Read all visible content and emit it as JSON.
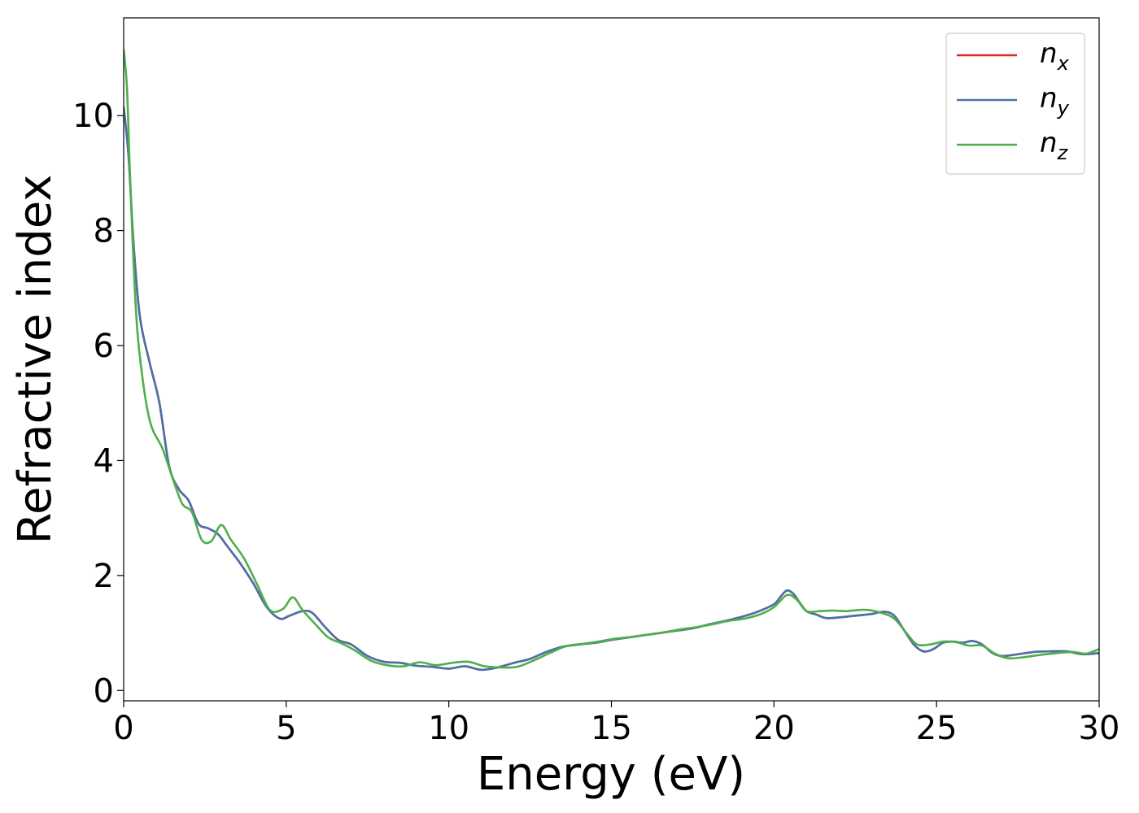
{
  "chart_data": {
    "type": "line",
    "title": "",
    "xlabel": "Energy (eV)",
    "ylabel": "Refractive index",
    "xlim": [
      0,
      30
    ],
    "ylim": [
      -0.18,
      11.7
    ],
    "xticks": [
      0,
      5,
      10,
      15,
      20,
      25,
      30
    ],
    "yticks": [
      0,
      2,
      4,
      6,
      8,
      10
    ],
    "grid": false,
    "legend_position": "top-right",
    "series": [
      {
        "name": "n",
        "subscript": "x",
        "color": "#d62728",
        "x": [
          0.0,
          0.15,
          0.3,
          0.5,
          0.8,
          1.1,
          1.4,
          1.7,
          2.0,
          2.3,
          2.6,
          2.9,
          3.2,
          3.6,
          4.0,
          4.4,
          4.8,
          5.1,
          5.5,
          5.8,
          6.2,
          6.6,
          7.0,
          7.5,
          8.0,
          8.5,
          9.0,
          9.5,
          10.0,
          10.5,
          11.0,
          11.5,
          12.0,
          12.5,
          13.0,
          13.5,
          14.0,
          14.5,
          15.0,
          15.5,
          16.0,
          16.5,
          17.0,
          17.5,
          18.0,
          18.5,
          19.0,
          19.5,
          20.0,
          20.2,
          20.4,
          20.6,
          20.8,
          21.0,
          21.3,
          21.6,
          22.0,
          22.5,
          23.0,
          23.4,
          23.7,
          24.0,
          24.3,
          24.6,
          24.9,
          25.2,
          25.5,
          25.8,
          26.1,
          26.4,
          26.7,
          27.0,
          27.5,
          28.0,
          28.5,
          29.0,
          29.5,
          30.0
        ],
        "y": [
          10.15,
          9.3,
          7.8,
          6.5,
          5.7,
          5.0,
          3.9,
          3.5,
          3.3,
          2.9,
          2.82,
          2.72,
          2.5,
          2.2,
          1.85,
          1.45,
          1.25,
          1.3,
          1.38,
          1.35,
          1.1,
          0.88,
          0.8,
          0.6,
          0.5,
          0.48,
          0.43,
          0.41,
          0.38,
          0.42,
          0.36,
          0.4,
          0.48,
          0.55,
          0.67,
          0.76,
          0.8,
          0.83,
          0.88,
          0.92,
          0.96,
          1.0,
          1.04,
          1.08,
          1.15,
          1.21,
          1.28,
          1.37,
          1.5,
          1.63,
          1.74,
          1.68,
          1.52,
          1.38,
          1.32,
          1.26,
          1.27,
          1.3,
          1.33,
          1.37,
          1.3,
          1.05,
          0.8,
          0.68,
          0.72,
          0.83,
          0.85,
          0.83,
          0.86,
          0.8,
          0.66,
          0.6,
          0.63,
          0.67,
          0.68,
          0.68,
          0.63,
          0.65
        ]
      },
      {
        "name": "n",
        "subscript": "y",
        "color": "#4a72a8",
        "x": [
          0.0,
          0.15,
          0.3,
          0.5,
          0.8,
          1.1,
          1.4,
          1.7,
          2.0,
          2.3,
          2.6,
          2.9,
          3.2,
          3.6,
          4.0,
          4.4,
          4.8,
          5.1,
          5.5,
          5.8,
          6.2,
          6.6,
          7.0,
          7.5,
          8.0,
          8.5,
          9.0,
          9.5,
          10.0,
          10.5,
          11.0,
          11.5,
          12.0,
          12.5,
          13.0,
          13.5,
          14.0,
          14.5,
          15.0,
          15.5,
          16.0,
          16.5,
          17.0,
          17.5,
          18.0,
          18.5,
          19.0,
          19.5,
          20.0,
          20.2,
          20.4,
          20.6,
          20.8,
          21.0,
          21.3,
          21.6,
          22.0,
          22.5,
          23.0,
          23.4,
          23.7,
          24.0,
          24.3,
          24.6,
          24.9,
          25.2,
          25.5,
          25.8,
          26.1,
          26.4,
          26.7,
          27.0,
          27.5,
          28.0,
          28.5,
          29.0,
          29.5,
          30.0
        ],
        "y": [
          10.15,
          9.3,
          7.8,
          6.5,
          5.7,
          5.0,
          3.9,
          3.5,
          3.3,
          2.9,
          2.82,
          2.72,
          2.5,
          2.2,
          1.85,
          1.45,
          1.25,
          1.3,
          1.38,
          1.35,
          1.1,
          0.88,
          0.8,
          0.6,
          0.5,
          0.48,
          0.43,
          0.41,
          0.38,
          0.42,
          0.36,
          0.4,
          0.48,
          0.55,
          0.67,
          0.76,
          0.8,
          0.83,
          0.88,
          0.92,
          0.96,
          1.0,
          1.04,
          1.08,
          1.15,
          1.21,
          1.28,
          1.37,
          1.5,
          1.63,
          1.74,
          1.68,
          1.52,
          1.38,
          1.32,
          1.26,
          1.27,
          1.3,
          1.33,
          1.37,
          1.3,
          1.05,
          0.8,
          0.68,
          0.72,
          0.83,
          0.85,
          0.83,
          0.86,
          0.8,
          0.66,
          0.6,
          0.63,
          0.67,
          0.68,
          0.68,
          0.63,
          0.65
        ]
      },
      {
        "name": "n",
        "subscript": "z",
        "color": "#4daf4a",
        "x": [
          0.0,
          0.1,
          0.2,
          0.35,
          0.5,
          0.8,
          1.2,
          1.5,
          1.8,
          2.1,
          2.4,
          2.7,
          3.0,
          3.3,
          3.7,
          4.1,
          4.5,
          4.9,
          5.2,
          5.5,
          5.9,
          6.3,
          6.7,
          7.1,
          7.6,
          8.1,
          8.6,
          9.1,
          9.6,
          10.1,
          10.6,
          11.1,
          11.6,
          12.1,
          12.6,
          13.1,
          13.6,
          14.1,
          14.6,
          15.1,
          15.6,
          16.1,
          16.6,
          17.1,
          17.6,
          18.1,
          18.6,
          19.1,
          19.6,
          20.0,
          20.4,
          20.7,
          21.0,
          21.4,
          21.8,
          22.2,
          22.6,
          22.9,
          23.3,
          23.7,
          24.1,
          24.4,
          24.8,
          25.2,
          25.6,
          26.0,
          26.4,
          26.8,
          27.2,
          27.7,
          28.2,
          28.7,
          29.2,
          29.6,
          30.0
        ],
        "y": [
          11.15,
          10.5,
          8.9,
          6.9,
          5.8,
          4.7,
          4.2,
          3.7,
          3.25,
          3.1,
          2.62,
          2.6,
          2.88,
          2.62,
          2.3,
          1.85,
          1.4,
          1.42,
          1.62,
          1.4,
          1.15,
          0.92,
          0.82,
          0.7,
          0.52,
          0.44,
          0.42,
          0.49,
          0.44,
          0.48,
          0.5,
          0.42,
          0.4,
          0.41,
          0.52,
          0.65,
          0.77,
          0.81,
          0.85,
          0.9,
          0.93,
          0.97,
          1.01,
          1.06,
          1.1,
          1.15,
          1.21,
          1.25,
          1.33,
          1.45,
          1.66,
          1.58,
          1.38,
          1.38,
          1.39,
          1.38,
          1.4,
          1.4,
          1.35,
          1.25,
          0.98,
          0.8,
          0.8,
          0.85,
          0.84,
          0.78,
          0.78,
          0.64,
          0.56,
          0.58,
          0.62,
          0.65,
          0.67,
          0.64,
          0.72
        ]
      }
    ]
  }
}
